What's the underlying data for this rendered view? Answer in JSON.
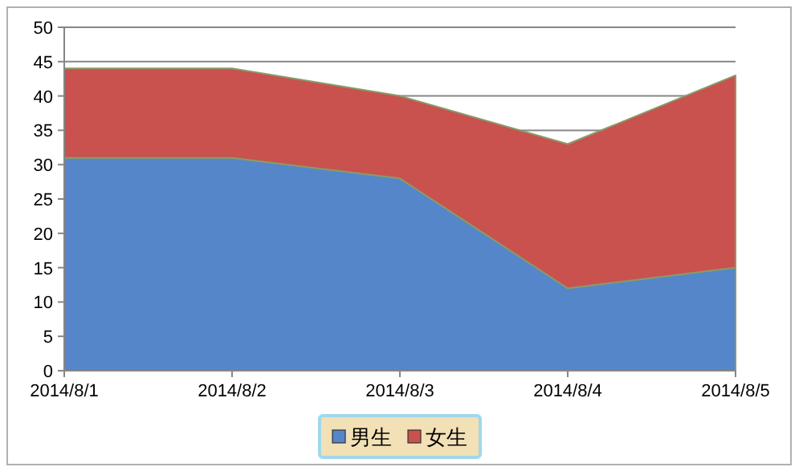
{
  "chart_data": {
    "type": "area",
    "stacked": true,
    "categories": [
      "2014/8/1",
      "2014/8/2",
      "2014/8/3",
      "2014/8/4",
      "2014/8/5"
    ],
    "series": [
      {
        "name": "男生",
        "color": "#5486c9",
        "values": [
          31,
          31,
          28,
          12,
          15
        ]
      },
      {
        "name": "女生",
        "color": "#c9514e",
        "values": [
          13,
          13,
          12,
          21,
          28
        ]
      }
    ],
    "ylim": [
      0,
      50
    ],
    "yticks": [
      0,
      5,
      10,
      15,
      20,
      25,
      30,
      35,
      40,
      45,
      50
    ],
    "grid": "y",
    "legend": "bottom"
  }
}
